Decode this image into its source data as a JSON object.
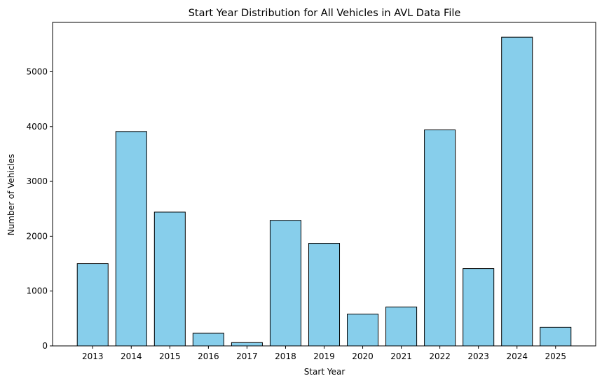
{
  "chart_data": {
    "type": "bar",
    "title": "Start Year Distribution for All Vehicles in AVL Data File",
    "xlabel": "Start Year",
    "ylabel": "Number of Vehicles",
    "categories": [
      "2013",
      "2014",
      "2015",
      "2016",
      "2017",
      "2018",
      "2019",
      "2020",
      "2021",
      "2022",
      "2023",
      "2024",
      "2025"
    ],
    "values": [
      1500,
      3910,
      2440,
      230,
      60,
      2290,
      1870,
      580,
      710,
      3940,
      1410,
      5630,
      340
    ],
    "ylim": [
      0,
      5900
    ],
    "yticks": [
      0,
      1000,
      2000,
      3000,
      4000,
      5000
    ],
    "grid": false,
    "legend": "none",
    "colors": {
      "bar_fill": "#87ceeb",
      "bar_edge": "#000000",
      "axis": "#000000"
    }
  }
}
